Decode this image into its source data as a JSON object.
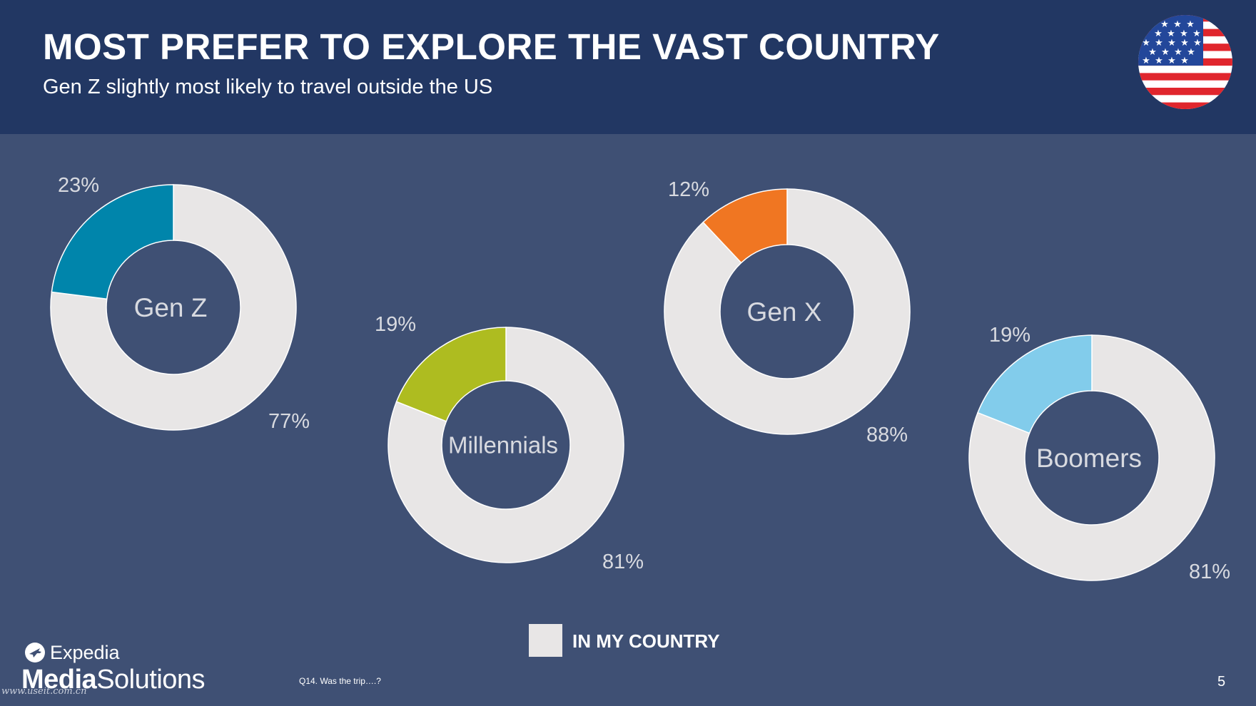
{
  "header": {
    "title": "MOST PREFER TO EXPLORE THE VAST COUNTRY",
    "subtitle": "Gen Z slightly most likely to travel outside the US"
  },
  "chart_data": [
    {
      "type": "pie",
      "center_label": "Gen Z",
      "series": [
        {
          "name": "",
          "value": 23,
          "label": "23%",
          "color": "#0085ab"
        },
        {
          "name": "IN MY COUNTRY",
          "value": 77,
          "label": "77%",
          "color": "#e8e6e6"
        }
      ]
    },
    {
      "type": "pie",
      "center_label": "Millennials",
      "series": [
        {
          "name": "",
          "value": 19,
          "label": "19%",
          "color": "#aebc20"
        },
        {
          "name": "IN MY COUNTRY",
          "value": 81,
          "label": "81%",
          "color": "#e8e6e6"
        }
      ]
    },
    {
      "type": "pie",
      "center_label": "Gen X",
      "series": [
        {
          "name": "",
          "value": 12,
          "label": "12%",
          "color": "#f07622"
        },
        {
          "name": "IN MY COUNTRY",
          "value": 88,
          "label": "88%",
          "color": "#e8e6e6"
        }
      ]
    },
    {
      "type": "pie",
      "center_label": "Boomers",
      "series": [
        {
          "name": "",
          "value": 19,
          "label": "19%",
          "color": "#82cceb"
        },
        {
          "name": "IN MY COUNTRY",
          "value": 81,
          "label": "81%",
          "color": "#e8e6e6"
        }
      ]
    }
  ],
  "legend": {
    "label": "IN MY COUNTRY",
    "color": "#e8e6e6",
    "placement": "bottom-center"
  },
  "colors": {
    "header_bg": "#223763",
    "body_bg": "#3f5074",
    "value_text": "#d8dae0"
  },
  "footer": {
    "logo_brand": "Expedia",
    "logo_word1": "Media",
    "logo_word2": "Solutions",
    "watermark": "www.useit.com.cn",
    "footnote": "Q14. Was the trip….?",
    "page_number": "5"
  },
  "icons": {
    "flag": "us-flag-icon",
    "logo": "expedia-plane-icon"
  }
}
